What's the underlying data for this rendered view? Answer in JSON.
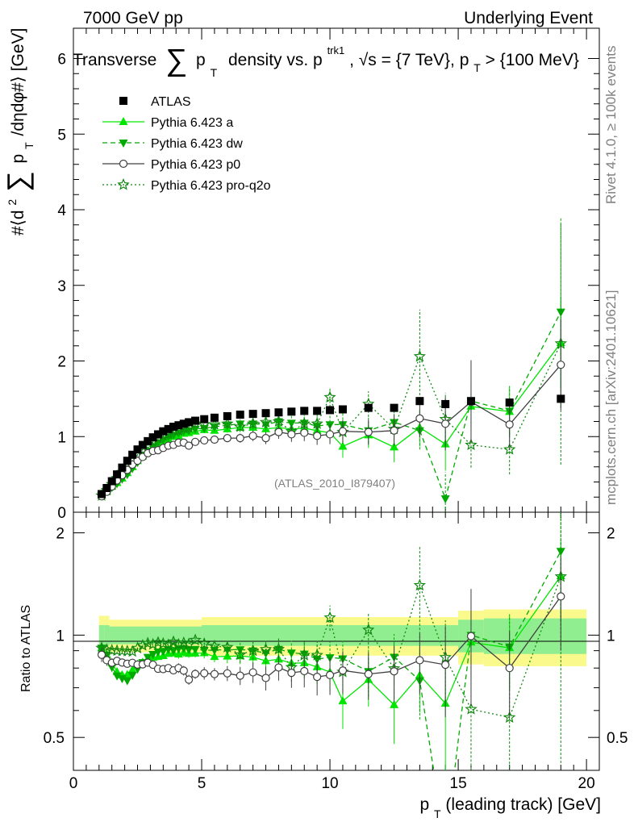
{
  "header": {
    "left": "7000 GeV pp",
    "right": "Underlying Event"
  },
  "side": {
    "rivet": "Rivet 4.1.0, ≥ 100k events",
    "mcplots": "mcplots.cern.ch [arXiv:2401.10621]"
  },
  "chart_data": [
    {
      "type": "scatter",
      "title": "Transverse ∑ p_T density vs. p_T^trk1, √s = {7 TeV}, p_T > {100 MeV}",
      "title_parts": {
        "a": "Transverse",
        "sum": "∑",
        "p": "p",
        "sub_t": "T",
        "b": "density vs. p",
        "sup_trk": "trk1",
        "c": ", √s = {7 TeV}, p",
        "d": " > {100 MeV}"
      },
      "ylabel": "#⟨d² ∑ p_T /dηdφ#⟩ [GeV]",
      "ylabel_parts": {
        "a": "#⟨d",
        "sup": "2",
        "sum": "∑",
        "p": "p",
        "sub": "T",
        "b": " /dηdφ#⟩ [GeV]"
      },
      "xlim": [
        0,
        20.5
      ],
      "ylim": [
        0,
        6.4
      ],
      "yticks": [
        "0",
        "1",
        "2",
        "3",
        "4",
        "5",
        "6"
      ],
      "watermark": "(ATLAS_2010_I879407)",
      "legend": [
        "ATLAS",
        "Pythia 6.423 a",
        "Pythia 6.423 dw",
        "Pythia 6.423 p0",
        "Pythia 6.423 pro-q2o"
      ],
      "x": [
        1.1,
        1.3,
        1.5,
        1.7,
        1.9,
        2.1,
        2.3,
        2.5,
        2.7,
        2.9,
        3.1,
        3.3,
        3.5,
        3.7,
        3.9,
        4.1,
        4.3,
        4.5,
        4.75,
        5.1,
        5.5,
        6.0,
        6.5,
        7.0,
        7.5,
        8.0,
        8.5,
        9.0,
        9.5,
        10.0,
        10.5,
        11.5,
        12.5,
        13.5,
        14.5,
        15.5,
        17.0,
        19.0
      ],
      "series": [
        {
          "name": "ATLAS",
          "values": [
            0.24,
            0.32,
            0.41,
            0.5,
            0.59,
            0.68,
            0.76,
            0.83,
            0.89,
            0.94,
            0.99,
            1.03,
            1.07,
            1.1,
            1.13,
            1.15,
            1.17,
            1.19,
            1.21,
            1.23,
            1.25,
            1.27,
            1.29,
            1.3,
            1.31,
            1.32,
            1.33,
            1.34,
            1.34,
            1.35,
            1.36,
            1.38,
            1.38,
            1.47,
            1.43,
            1.47,
            1.45,
            1.5
          ]
        },
        {
          "name": "Pythia 6.423 a",
          "values": [
            0.22,
            0.28,
            0.34,
            0.39,
            0.45,
            0.52,
            0.6,
            0.68,
            0.74,
            0.8,
            0.85,
            0.89,
            0.93,
            0.97,
            1.0,
            1.01,
            1.04,
            1.05,
            1.07,
            1.09,
            1.08,
            1.1,
            1.12,
            1.12,
            1.1,
            1.12,
            1.1,
            1.11,
            1.08,
            1.05,
            0.87,
            1.02,
            0.86,
            1.12,
            0.9,
            1.4,
            1.33,
            2.24
          ]
        },
        {
          "name": "Pythia 6.423 dw",
          "values": [
            0.22,
            0.28,
            0.33,
            0.38,
            0.44,
            0.5,
            0.58,
            0.66,
            0.74,
            0.81,
            0.87,
            0.92,
            0.96,
            1.0,
            1.02,
            1.05,
            1.07,
            1.08,
            1.1,
            1.11,
            1.13,
            1.15,
            1.17,
            1.17,
            1.16,
            1.2,
            1.18,
            1.18,
            1.14,
            1.16,
            1.16,
            1.08,
            1.19,
            1.08,
            0.18,
            1.47,
            1.34,
            2.65
          ]
        },
        {
          "name": "Pythia 6.423 p0",
          "values": [
            0.21,
            0.27,
            0.34,
            0.42,
            0.49,
            0.56,
            0.63,
            0.68,
            0.73,
            0.78,
            0.81,
            0.82,
            0.85,
            0.88,
            0.89,
            0.92,
            0.92,
            0.88,
            0.93,
            0.95,
            0.96,
            0.98,
            0.98,
            1.01,
            0.98,
            1.06,
            1.03,
            1.05,
            1.01,
            1.03,
            1.07,
            1.06,
            1.08,
            1.24,
            1.17,
            1.46,
            1.16,
            1.95
          ]
        },
        {
          "name": "Pythia 6.423 pro-q2o",
          "values": [
            0.22,
            0.29,
            0.37,
            0.45,
            0.53,
            0.61,
            0.68,
            0.76,
            0.83,
            0.89,
            0.93,
            0.98,
            1.01,
            1.03,
            1.08,
            1.08,
            1.11,
            1.12,
            1.17,
            1.16,
            1.16,
            1.17,
            1.13,
            1.17,
            1.19,
            1.2,
            1.07,
            1.17,
            1.17,
            1.52,
            1.06,
            1.43,
            1.1,
            2.06,
            1.23,
            0.89,
            0.83,
            2.23
          ]
        }
      ],
      "errors": {
        "Pythia 6.423 a": [
          0.01,
          0.01,
          0.01,
          0.01,
          0.01,
          0.01,
          0.01,
          0.01,
          0.01,
          0.02,
          0.02,
          0.02,
          0.02,
          0.02,
          0.02,
          0.03,
          0.03,
          0.03,
          0.03,
          0.04,
          0.04,
          0.05,
          0.06,
          0.07,
          0.08,
          0.09,
          0.1,
          0.11,
          0.12,
          0.13,
          0.15,
          0.17,
          0.2,
          0.25,
          0.35,
          0.3,
          0.33,
          0.6
        ],
        "Pythia 6.423 dw": [
          0.01,
          0.01,
          0.01,
          0.01,
          0.01,
          0.01,
          0.01,
          0.01,
          0.01,
          0.02,
          0.02,
          0.02,
          0.02,
          0.02,
          0.02,
          0.03,
          0.03,
          0.03,
          0.03,
          0.04,
          0.04,
          0.05,
          0.06,
          0.07,
          0.08,
          0.09,
          0.1,
          0.11,
          0.12,
          0.13,
          0.15,
          0.17,
          0.2,
          0.25,
          0.35,
          0.3,
          0.33,
          1.25
        ],
        "Pythia 6.423 p0": [
          0.01,
          0.01,
          0.01,
          0.01,
          0.01,
          0.01,
          0.01,
          0.01,
          0.01,
          0.02,
          0.02,
          0.02,
          0.02,
          0.02,
          0.02,
          0.03,
          0.03,
          0.03,
          0.03,
          0.04,
          0.04,
          0.05,
          0.06,
          0.07,
          0.08,
          0.09,
          0.1,
          0.11,
          0.12,
          0.13,
          0.15,
          0.17,
          0.2,
          0.25,
          0.35,
          0.55,
          0.33,
          0.6
        ],
        "Pythia 6.423 pro-q2o": [
          0.01,
          0.01,
          0.01,
          0.01,
          0.01,
          0.01,
          0.01,
          0.01,
          0.01,
          0.02,
          0.02,
          0.02,
          0.02,
          0.02,
          0.02,
          0.03,
          0.03,
          0.03,
          0.03,
          0.04,
          0.04,
          0.05,
          0.06,
          0.07,
          0.08,
          0.09,
          0.1,
          0.11,
          0.12,
          0.13,
          0.15,
          0.17,
          0.2,
          0.62,
          0.35,
          0.3,
          0.33,
          1.6
        ]
      },
      "colors": {
        "ATLAS": "#000000",
        "Pythia 6.423 a": "#00e600",
        "Pythia 6.423 dw": "#00aa00",
        "Pythia 6.423 p0": "#404040",
        "Pythia 6.423 pro-q2o": "#118811"
      }
    },
    {
      "type": "scatter",
      "title": "Ratio to ATLAS",
      "ylabel": "Ratio to ATLAS",
      "xlabel": "p_T (leading track) [GeV]",
      "xlabel_parts": {
        "p": "p",
        "sub": "T",
        "rest": " (leading track) [GeV]"
      },
      "xlim": [
        0,
        20.5
      ],
      "ylim": [
        0.4,
        2.3
      ],
      "yscale": "log",
      "yticks": [
        "0.5",
        "1",
        "2"
      ],
      "xticks": [
        "0",
        "5",
        "10",
        "15",
        "20"
      ],
      "band": {
        "edges": [
          1.0,
          1.2,
          1.4,
          5.0,
          15.0,
          16.0,
          20.0
        ],
        "inner": [
          0.93,
          0.93,
          0.94,
          0.93,
          0.89,
          0.88
        ],
        "outer": [
          0.86,
          0.86,
          0.89,
          0.87,
          0.82,
          0.81
        ]
      },
      "colors": {
        "band_inner": "#90ee90",
        "band_outer": "#fafa8c"
      }
    }
  ]
}
